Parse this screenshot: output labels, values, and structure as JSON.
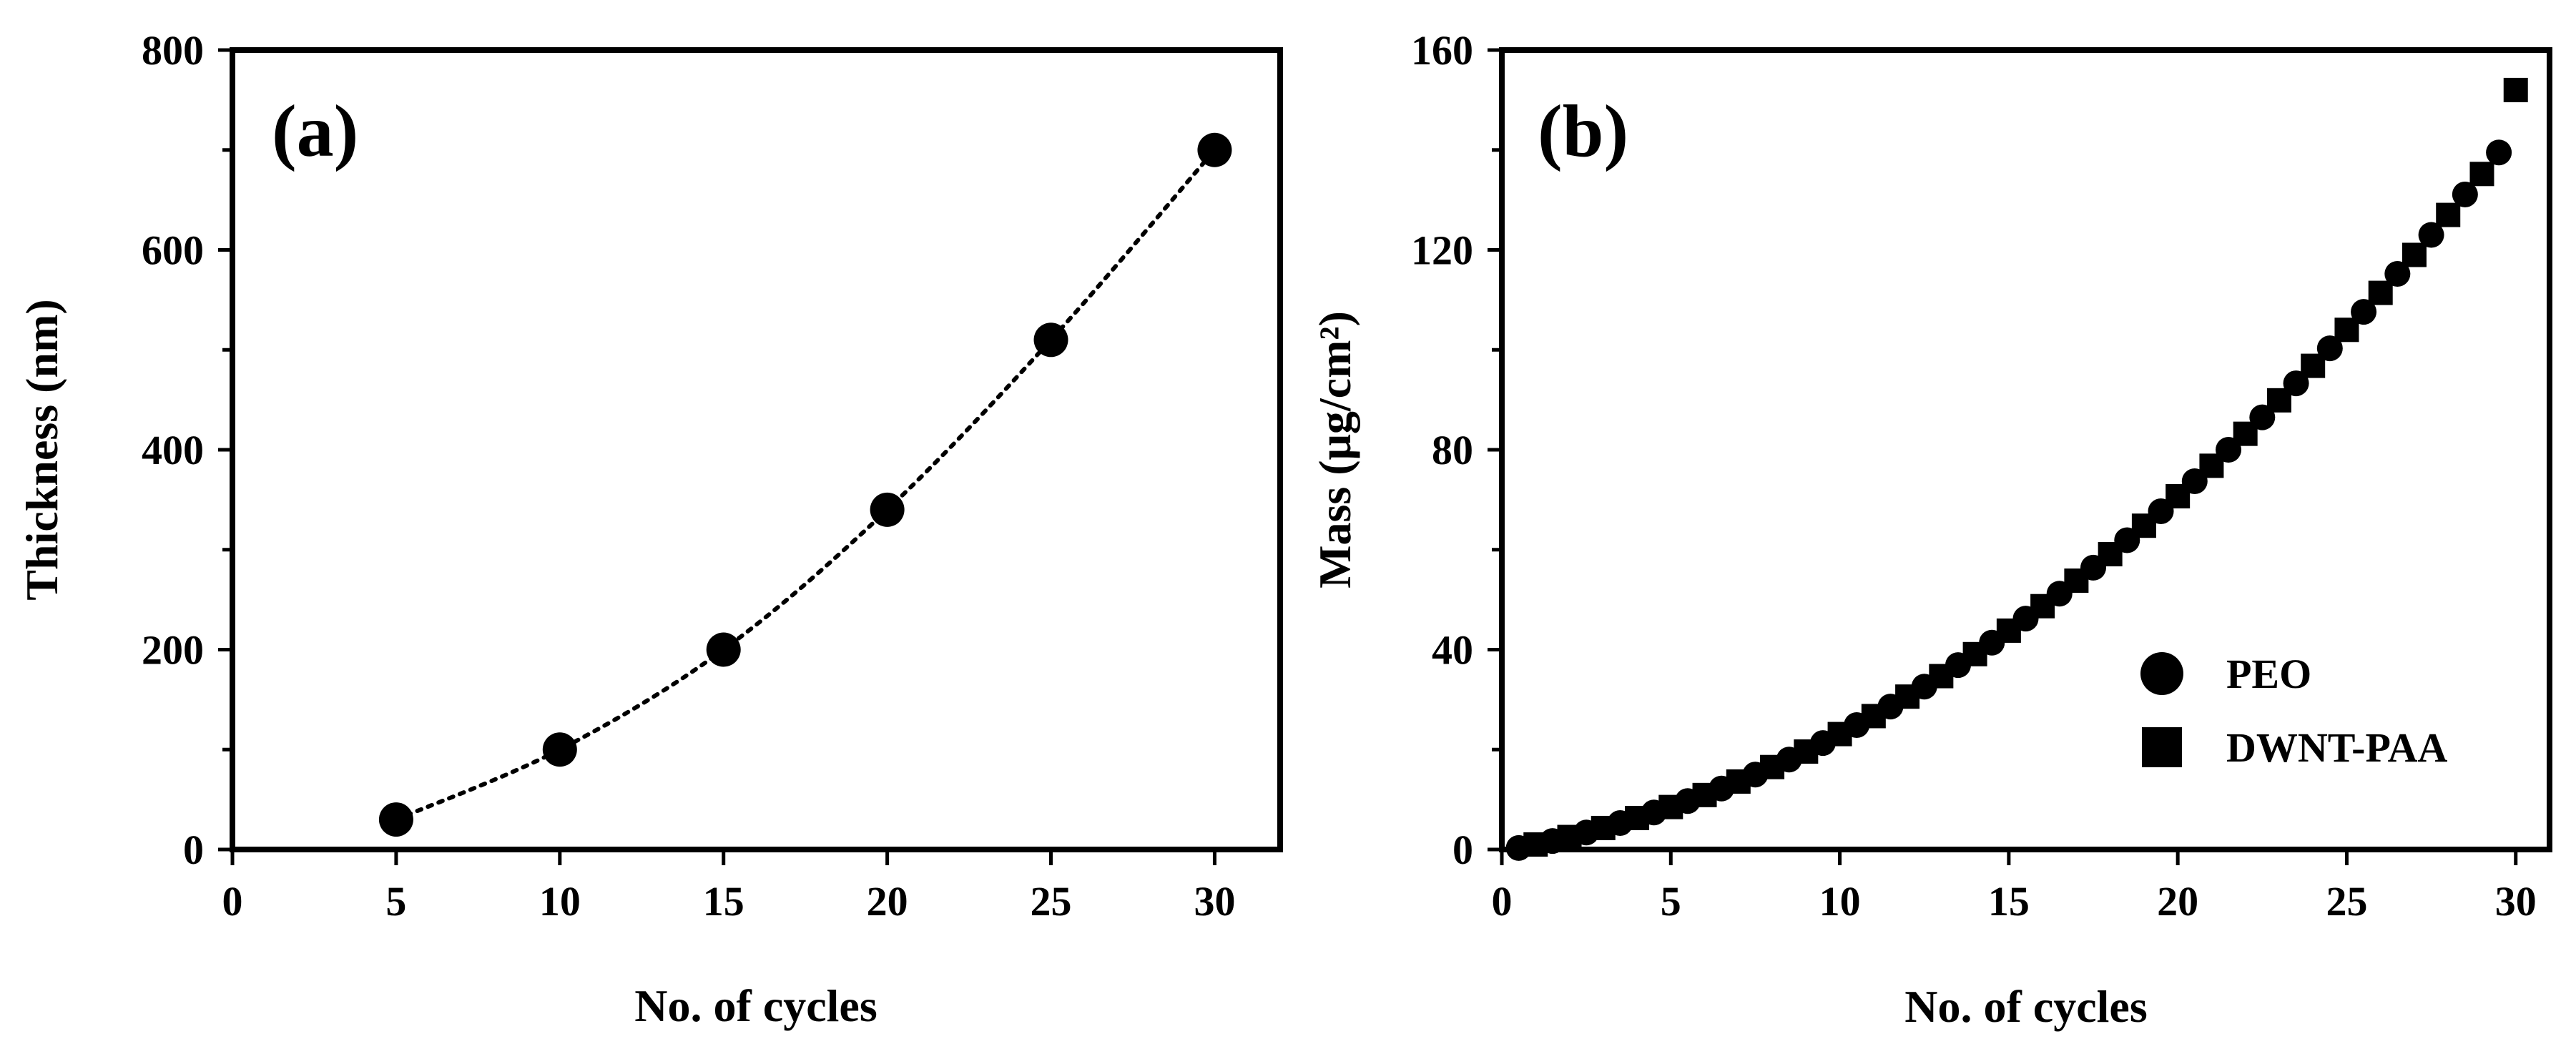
{
  "chart_data": [
    {
      "id": "a",
      "type": "scatter",
      "panel_label": "(a)",
      "xlabel": "No. of cycles",
      "ylabel": "Thickness (nm)",
      "xlim": [
        0,
        32
      ],
      "ylim": [
        0,
        800
      ],
      "xticks": [
        0,
        5,
        10,
        15,
        20,
        25,
        30
      ],
      "yticks": [
        0,
        200,
        400,
        600,
        800
      ],
      "series": [
        {
          "name": "Thickness",
          "marker": "circle",
          "fit_line": "dotted",
          "x": [
            5,
            10,
            15,
            20,
            25,
            30
          ],
          "y": [
            30,
            100,
            200,
            340,
            510,
            700
          ]
        }
      ]
    },
    {
      "id": "b",
      "type": "scatter",
      "panel_label": "(b)",
      "xlabel": "No. of cycles",
      "ylabel": "Mass (μg/cm²)",
      "xlim": [
        0,
        31
      ],
      "ylim": [
        0,
        160
      ],
      "xticks": [
        0,
        5,
        10,
        15,
        20,
        25,
        30
      ],
      "yticks": [
        0,
        40,
        80,
        120,
        160
      ],
      "legend_position": "bottom-right",
      "series": [
        {
          "name": "PEO",
          "marker": "circle",
          "x": [
            0.5,
            1.5,
            2.5,
            3.5,
            4.5,
            5.5,
            6.5,
            7.5,
            8.5,
            9.5,
            10.5,
            11.5,
            12.5,
            13.5,
            14.5,
            15.5,
            16.5,
            17.5,
            18.5,
            19.5,
            20.5,
            21.5,
            22.5,
            23.5,
            24.5,
            25.5,
            26.5,
            27.5,
            28.5,
            29.5
          ],
          "y": [
            0.3,
            1.7,
            3.4,
            5.3,
            7.4,
            9.7,
            12.2,
            15,
            18,
            21.3,
            24.9,
            28.6,
            32.6,
            36.9,
            41.4,
            46.2,
            51.2,
            56.4,
            61.9,
            67.7,
            73.7,
            80,
            86.5,
            93.3,
            100.3,
            107.6,
            115.2,
            123,
            131.1,
            139.5
          ]
        },
        {
          "name": "DWNT-PAA",
          "marker": "square",
          "x": [
            1,
            2,
            3,
            4,
            5,
            6,
            7,
            8,
            9,
            10,
            11,
            12,
            13,
            14,
            15,
            16,
            17,
            18,
            19,
            20,
            21,
            22,
            23,
            24,
            25,
            26,
            27,
            28,
            29,
            30
          ],
          "y": [
            1,
            2.5,
            4.3,
            6.3,
            8.5,
            10.9,
            13.6,
            16.5,
            19.6,
            23.1,
            26.7,
            30.6,
            34.7,
            39.1,
            43.8,
            48.7,
            53.8,
            59.1,
            64.8,
            70.7,
            76.8,
            83.2,
            89.9,
            96.8,
            104,
            111.4,
            119,
            127,
            135.2,
            152
          ]
        }
      ]
    }
  ]
}
